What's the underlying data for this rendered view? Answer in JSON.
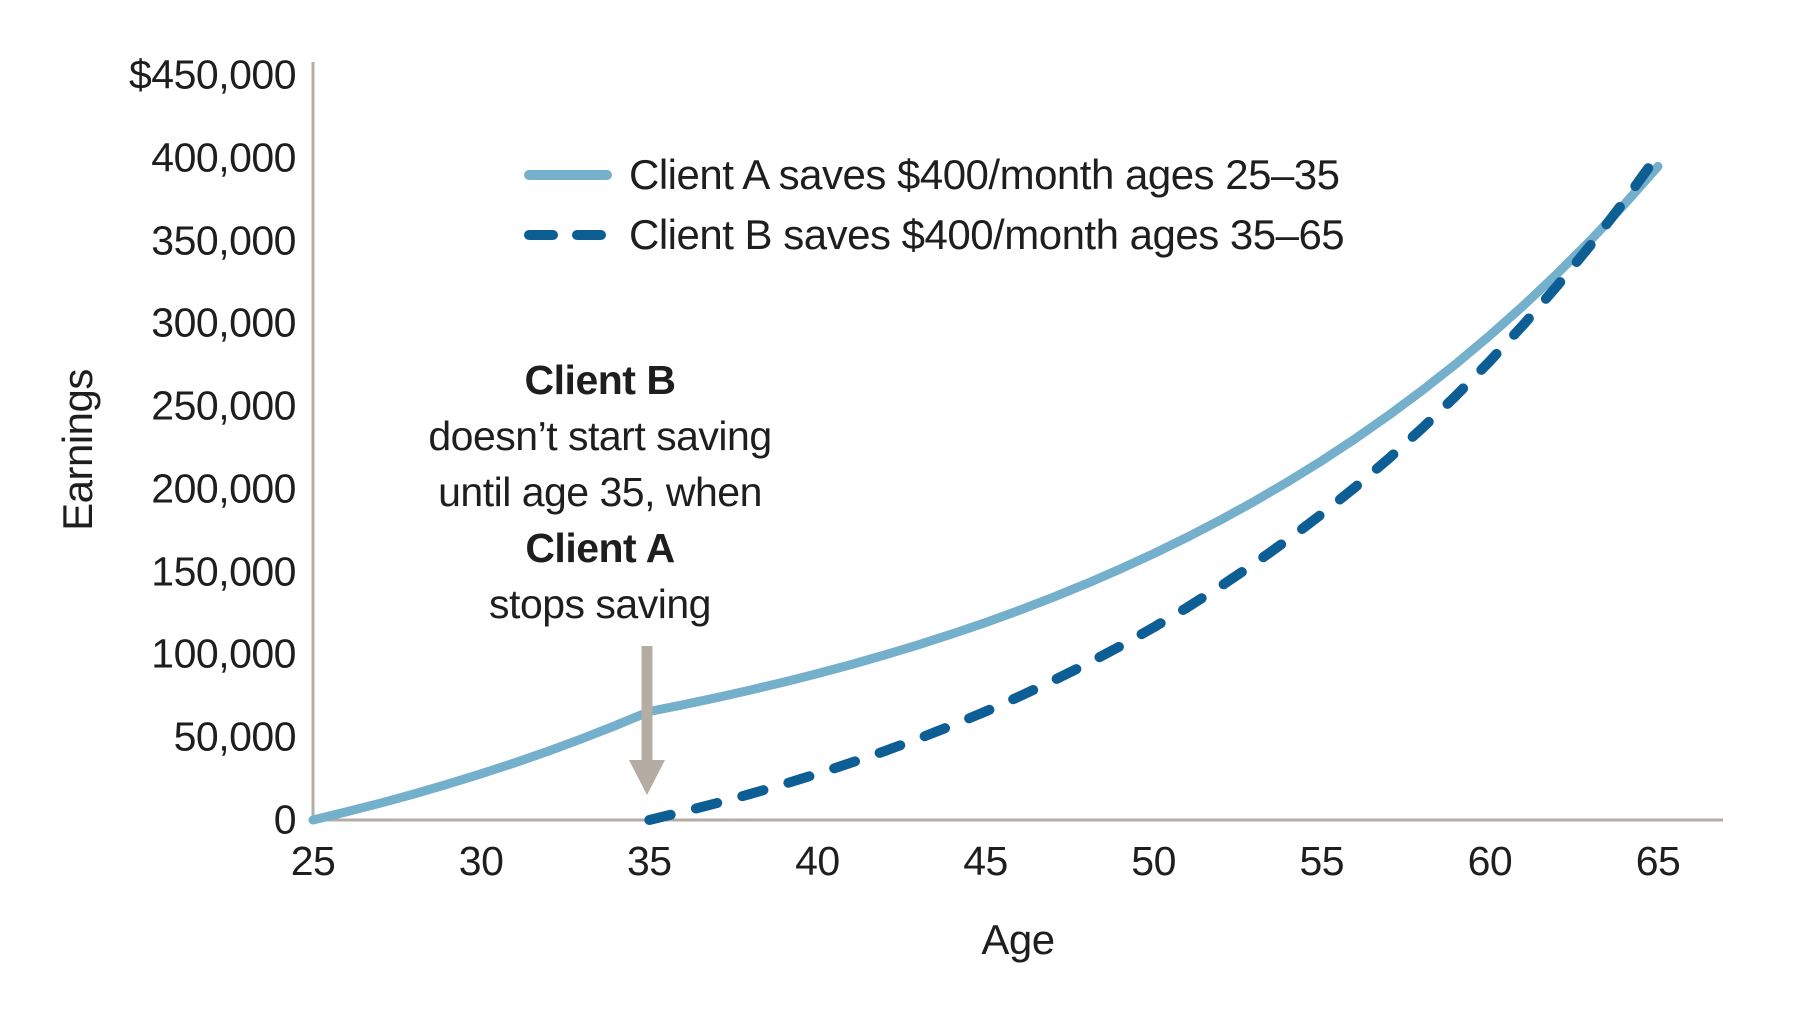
{
  "colors": {
    "client_a_line": "#74AFCB",
    "client_b_line": "#0E5E96",
    "axis": "#B4ACA4",
    "arrow": "#B5ADA3",
    "text": "#1E1E1E",
    "background": "#FFFFFF"
  },
  "chart_data": {
    "type": "line",
    "title": "",
    "xlabel": "Age",
    "ylabel": "Earnings",
    "xlim": [
      25,
      65
    ],
    "ylim": [
      0,
      450000
    ],
    "grid": false,
    "legend_position": "inside-top-left",
    "x_tick_labels": [
      "25",
      "30",
      "35",
      "40",
      "45",
      "50",
      "55",
      "60",
      "65"
    ],
    "x_tick_values": [
      25,
      30,
      35,
      40,
      45,
      50,
      55,
      60,
      65
    ],
    "y_tick_labels": [
      "$450,000",
      "400,000",
      "350,000",
      "300,000",
      "250,000",
      "200,000",
      "150,000",
      "100,000",
      "50,000",
      "0"
    ],
    "y_tick_values": [
      450000,
      400000,
      350000,
      300000,
      250000,
      200000,
      150000,
      100000,
      50000,
      0
    ],
    "series": [
      {
        "name": "Client A saves $400/month ages 25–35",
        "style": "solid",
        "color": "#74AFCB",
        "ages": [
          25,
          26,
          27,
          28,
          29,
          30,
          31,
          32,
          33,
          34,
          35,
          36,
          37,
          38,
          39,
          40,
          41,
          42,
          43,
          44,
          45,
          46,
          47,
          48,
          49,
          50,
          51,
          52,
          53,
          54,
          55,
          56,
          57,
          58,
          59,
          60,
          61,
          62,
          63,
          64,
          65
        ],
        "values": [
          0,
          4934,
          10173,
          15734,
          21639,
          27908,
          34564,
          41630,
          49131,
          57096,
          65552,
          69595,
          73888,
          78445,
          83283,
          88420,
          93874,
          99663,
          105810,
          112336,
          119265,
          126621,
          134431,
          142722,
          151525,
          160870,
          170793,
          181327,
          192511,
          204385,
          216991,
          230374,
          244583,
          259668,
          275684,
          292688,
          310742,
          329906,
          350256,
          371860,
          394792
        ]
      },
      {
        "name": "Client B saves $400/month ages 35–65",
        "style": "dashed",
        "color": "#0E5E96",
        "ages": [
          35,
          36,
          37,
          38,
          39,
          40,
          41,
          42,
          43,
          44,
          45,
          46,
          47,
          48,
          49,
          50,
          51,
          52,
          53,
          54,
          55,
          56,
          57,
          58,
          59,
          60,
          61,
          62,
          63,
          64,
          65
        ],
        "values": [
          0,
          4934,
          10173,
          15734,
          21639,
          27908,
          34564,
          41630,
          49131,
          57096,
          65552,
          74529,
          84060,
          94179,
          104922,
          116328,
          128437,
          141292,
          154941,
          169432,
          184816,
          201150,
          218490,
          236901,
          256445,
          277198,
          299229,
          322619,
          347452,
          373816,
          401807
        ]
      }
    ],
    "annotation": {
      "arrow_points_to_age": 35,
      "lines": [
        {
          "text": "Client B",
          "bold": true
        },
        {
          "text": "doesn’t start saving",
          "bold": false
        },
        {
          "text": "until age 35, when",
          "bold": false
        },
        {
          "text": "Client A",
          "bold": true
        },
        {
          "text": "stops saving",
          "bold": false
        }
      ]
    }
  }
}
